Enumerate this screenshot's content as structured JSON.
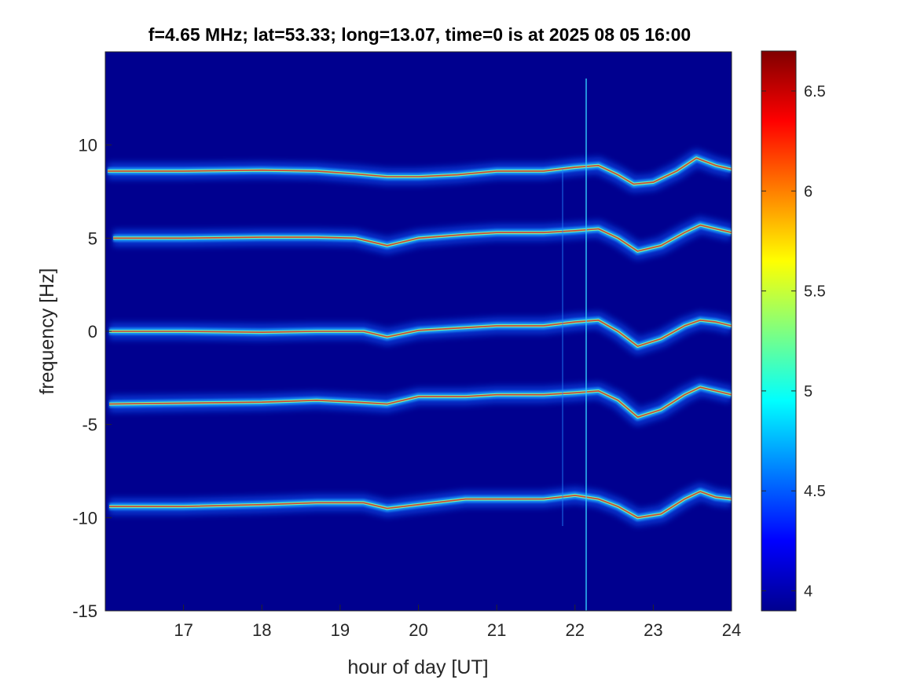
{
  "chart_data": {
    "type": "heatmap",
    "title": "f=4.65 MHz;  lat=53.33; long=13.07, time=0 is at 2025 08 05 16:00",
    "xlabel": "hour of day [UT]",
    "ylabel": "frequency [Hz]",
    "xlim": [
      16,
      24
    ],
    "ylim": [
      -15,
      15
    ],
    "x_ticks": [
      "17",
      "18",
      "19",
      "20",
      "21",
      "22",
      "23",
      "24"
    ],
    "y_ticks": [
      "10",
      "5",
      "0",
      "-5",
      "-10",
      "-15"
    ],
    "colormap": "jet",
    "background_color": "#00008f",
    "colorbar": {
      "range": [
        3.9,
        6.7
      ],
      "ticks": [
        "6.5",
        "6",
        "5.5",
        "5",
        "4.5",
        "4"
      ]
    },
    "grid": false,
    "traces": [
      {
        "name": "",
        "points": [
          [
            16.03,
            8.6
          ],
          [
            17,
            8.6
          ],
          [
            18,
            8.65
          ],
          [
            18.7,
            8.6
          ],
          [
            19.2,
            8.45
          ],
          [
            19.6,
            8.3
          ],
          [
            20,
            8.3
          ],
          [
            20.5,
            8.4
          ],
          [
            21,
            8.6
          ],
          [
            21.6,
            8.6
          ],
          [
            22,
            8.8
          ],
          [
            22.3,
            8.9
          ],
          [
            22.55,
            8.4
          ],
          [
            22.75,
            7.9
          ],
          [
            23,
            8.0
          ],
          [
            23.3,
            8.6
          ],
          [
            23.55,
            9.3
          ],
          [
            23.8,
            8.9
          ],
          [
            24,
            8.7
          ]
        ]
      },
      {
        "name": "",
        "points": [
          [
            16.1,
            5.0
          ],
          [
            17,
            5.0
          ],
          [
            18,
            5.05
          ],
          [
            18.7,
            5.05
          ],
          [
            19.2,
            5.0
          ],
          [
            19.6,
            4.6
          ],
          [
            20,
            5.0
          ],
          [
            20.6,
            5.2
          ],
          [
            21,
            5.3
          ],
          [
            21.6,
            5.3
          ],
          [
            22,
            5.4
          ],
          [
            22.3,
            5.5
          ],
          [
            22.55,
            5.0
          ],
          [
            22.8,
            4.3
          ],
          [
            23.1,
            4.6
          ],
          [
            23.4,
            5.3
          ],
          [
            23.6,
            5.7
          ],
          [
            23.8,
            5.5
          ],
          [
            24,
            5.3
          ]
        ]
      },
      {
        "name": "",
        "points": [
          [
            16.05,
            0.0
          ],
          [
            17,
            0.0
          ],
          [
            18,
            -0.05
          ],
          [
            18.7,
            0.0
          ],
          [
            19.3,
            0.0
          ],
          [
            19.6,
            -0.3
          ],
          [
            20,
            0.05
          ],
          [
            20.6,
            0.2
          ],
          [
            21,
            0.3
          ],
          [
            21.6,
            0.3
          ],
          [
            22,
            0.5
          ],
          [
            22.3,
            0.6
          ],
          [
            22.55,
            0.0
          ],
          [
            22.8,
            -0.8
          ],
          [
            23.1,
            -0.4
          ],
          [
            23.4,
            0.3
          ],
          [
            23.6,
            0.6
          ],
          [
            23.8,
            0.5
          ],
          [
            24,
            0.3
          ]
        ]
      },
      {
        "name": "",
        "points": [
          [
            16.05,
            -3.9
          ],
          [
            17,
            -3.85
          ],
          [
            18,
            -3.8
          ],
          [
            18.7,
            -3.7
          ],
          [
            19.2,
            -3.8
          ],
          [
            19.6,
            -3.9
          ],
          [
            20,
            -3.5
          ],
          [
            20.6,
            -3.5
          ],
          [
            21,
            -3.4
          ],
          [
            21.6,
            -3.4
          ],
          [
            22,
            -3.3
          ],
          [
            22.3,
            -3.2
          ],
          [
            22.55,
            -3.7
          ],
          [
            22.8,
            -4.6
          ],
          [
            23.1,
            -4.2
          ],
          [
            23.4,
            -3.4
          ],
          [
            23.6,
            -3.0
          ],
          [
            23.8,
            -3.2
          ],
          [
            24,
            -3.4
          ]
        ]
      },
      {
        "name": "",
        "points": [
          [
            16.05,
            -9.4
          ],
          [
            17,
            -9.4
          ],
          [
            18,
            -9.3
          ],
          [
            18.7,
            -9.2
          ],
          [
            19.3,
            -9.2
          ],
          [
            19.6,
            -9.5
          ],
          [
            20,
            -9.3
          ],
          [
            20.6,
            -9.0
          ],
          [
            21,
            -9.0
          ],
          [
            21.6,
            -9.0
          ],
          [
            22,
            -8.8
          ],
          [
            22.3,
            -9.0
          ],
          [
            22.55,
            -9.4
          ],
          [
            22.8,
            -10.0
          ],
          [
            23.1,
            -9.8
          ],
          [
            23.4,
            -9.0
          ],
          [
            23.6,
            -8.6
          ],
          [
            23.8,
            -8.9
          ],
          [
            24,
            -9.0
          ]
        ]
      }
    ]
  }
}
